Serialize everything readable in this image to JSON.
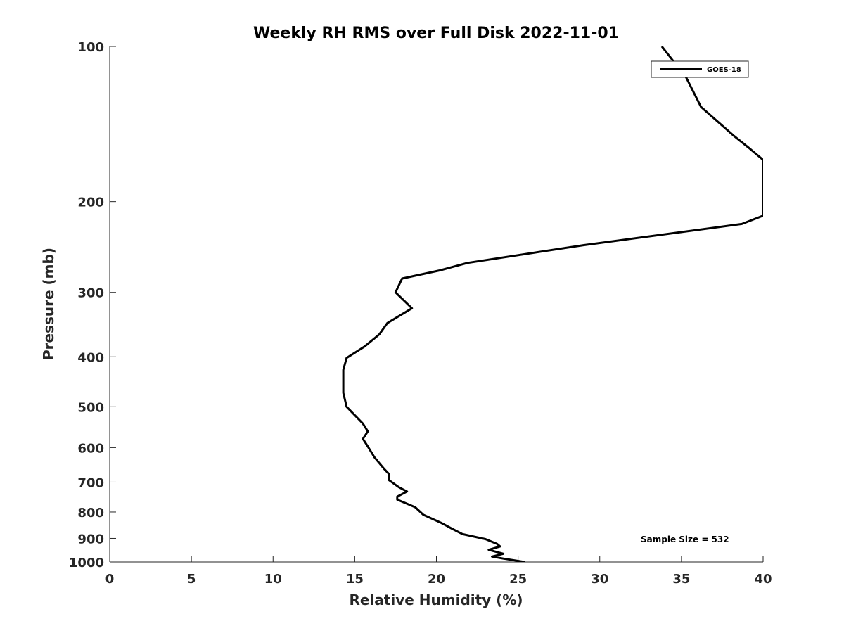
{
  "chart_data": {
    "type": "line",
    "title": "Weekly RH RMS over Full Disk 2022-11-01",
    "xlabel": "Relative Humidity (%)",
    "ylabel": "Pressure (mb)",
    "xlim": [
      0,
      40
    ],
    "ylim": [
      100,
      1000
    ],
    "yscale": "log",
    "y_reversed": true,
    "grid": false,
    "x_ticks": [
      0,
      5,
      10,
      15,
      20,
      25,
      30,
      35,
      40
    ],
    "x_tick_labels": [
      "0",
      "5",
      "10",
      "15",
      "20",
      "25",
      "30",
      "35",
      "40"
    ],
    "y_ticks": [
      100,
      200,
      300,
      400,
      500,
      600,
      700,
      800,
      900,
      1000
    ],
    "y_tick_labels": [
      "100",
      "200",
      "300",
      "400",
      "500",
      "600",
      "700",
      "800",
      "900",
      "1000"
    ],
    "legend": {
      "position": "top-right",
      "entries": [
        "GOES-18"
      ]
    },
    "annotation": "Sample Size = 532",
    "series": [
      {
        "name": "GOES-18",
        "color": "#000000",
        "points": [
          [
            33.8,
            100
          ],
          [
            35.3,
            115
          ],
          [
            36.2,
            131
          ],
          [
            38.2,
            149
          ],
          [
            39.2,
            158
          ],
          [
            40.0,
            166
          ],
          [
            40.0,
            213
          ],
          [
            38.7,
            221
          ],
          [
            29.0,
            243
          ],
          [
            21.9,
            263
          ],
          [
            20.2,
            272
          ],
          [
            17.9,
            282
          ],
          [
            17.5,
            300
          ],
          [
            18.5,
            322
          ],
          [
            17.0,
            344
          ],
          [
            16.5,
            362
          ],
          [
            15.6,
            382
          ],
          [
            14.5,
            402
          ],
          [
            14.3,
            424
          ],
          [
            14.3,
            446
          ],
          [
            14.3,
            470
          ],
          [
            14.5,
            500
          ],
          [
            15.5,
            539
          ],
          [
            15.8,
            558
          ],
          [
            15.5,
            577
          ],
          [
            15.8,
            597
          ],
          [
            16.2,
            626
          ],
          [
            16.8,
            660
          ],
          [
            17.1,
            675
          ],
          [
            17.1,
            694
          ],
          [
            17.7,
            716
          ],
          [
            18.2,
            730
          ],
          [
            17.6,
            747
          ],
          [
            17.6,
            757
          ],
          [
            18.7,
            783
          ],
          [
            19.2,
            810
          ],
          [
            20.3,
            840
          ],
          [
            20.9,
            860
          ],
          [
            21.6,
            883
          ],
          [
            23.0,
            903
          ],
          [
            23.7,
            922
          ],
          [
            23.9,
            933
          ],
          [
            23.2,
            947
          ],
          [
            24.1,
            964
          ],
          [
            23.4,
            976
          ],
          [
            24.1,
            985
          ],
          [
            25.4,
            1000
          ]
        ]
      }
    ]
  }
}
